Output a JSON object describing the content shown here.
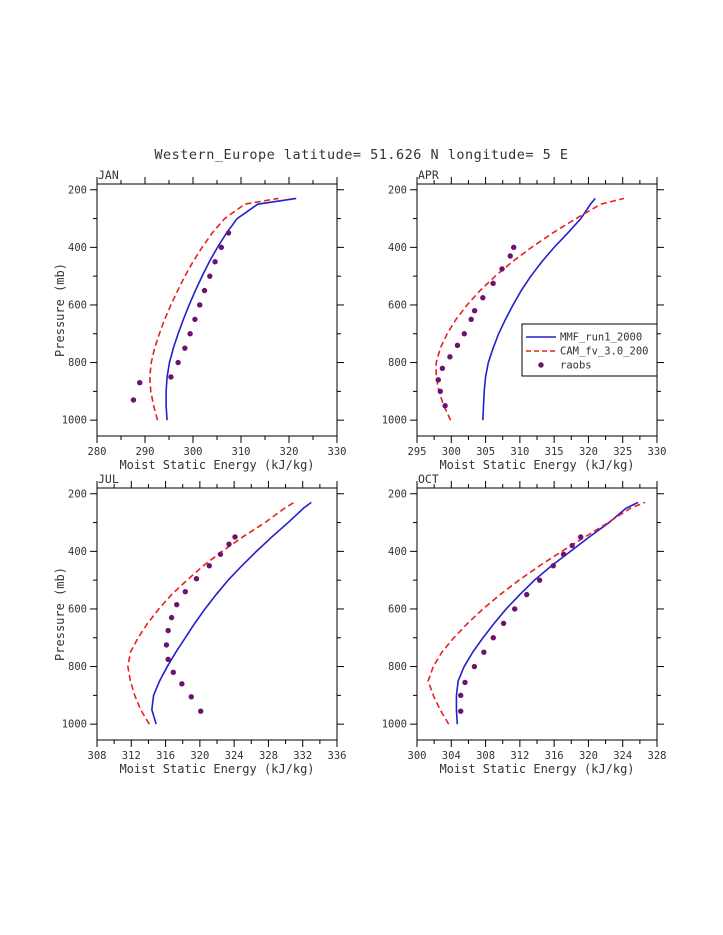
{
  "title": "Western_Europe  latitude= 51.626 N longitude= 5 E",
  "xlabel": "Moist Static Energy (kJ/kg)",
  "ylabel": "Pressure (mb)",
  "colors": {
    "mmf": "#2020cc",
    "cam": "#e82020",
    "raobs": "#6e1272",
    "text": "#333333",
    "axis": "#000000"
  },
  "legend": {
    "entries": [
      {
        "key": "mmf",
        "label": "MMF_run1_2000",
        "style": "solid"
      },
      {
        "key": "cam",
        "label": "CAM_fv_3.0_200",
        "style": "dashed"
      },
      {
        "key": "raobs",
        "label": "raobs",
        "style": "dots"
      }
    ]
  },
  "axes": {
    "ylim": [
      180,
      1055
    ],
    "yticks": [
      200,
      400,
      600,
      800,
      1000
    ],
    "y_minor_step": 100
  },
  "chart_data": [
    {
      "type": "line",
      "label": "JAN",
      "xlim": [
        280,
        330
      ],
      "xticks": [
        280,
        290,
        300,
        310,
        320,
        330
      ],
      "x_minor_step": 5,
      "show_ylabel": true,
      "show_legend": false,
      "series": {
        "mmf": {
          "p": [
            1000,
            950,
            900,
            850,
            800,
            750,
            700,
            650,
            600,
            550,
            500,
            450,
            400,
            350,
            300,
            250,
            230
          ],
          "x": [
            294.6,
            294.4,
            294.4,
            294.6,
            295.1,
            295.9,
            296.9,
            298.0,
            299.2,
            300.5,
            301.9,
            303.4,
            305.1,
            307.0,
            309.2,
            313.5,
            321.5
          ]
        },
        "cam": {
          "p": [
            1000,
            950,
            900,
            850,
            800,
            750,
            700,
            650,
            600,
            550,
            500,
            450,
            400,
            350,
            300,
            250,
            230
          ],
          "x": [
            292.6,
            291.8,
            291.2,
            291.0,
            291.3,
            292.0,
            293.0,
            294.1,
            295.4,
            296.8,
            298.3,
            300.0,
            301.9,
            304.0,
            306.6,
            310.8,
            317.8
          ]
        },
        "raobs": {
          "p": [
            930,
            870,
            850,
            800,
            750,
            700,
            650,
            600,
            550,
            500,
            450,
            400,
            350
          ],
          "x": [
            287.6,
            288.9,
            295.4,
            296.9,
            298.3,
            299.4,
            300.4,
            301.4,
            302.4,
            303.5,
            304.6,
            305.9,
            307.4
          ]
        }
      }
    },
    {
      "type": "line",
      "label": "APR",
      "xlim": [
        295,
        330
      ],
      "xticks": [
        295,
        300,
        305,
        310,
        315,
        320,
        325,
        330
      ],
      "x_minor_step": 2.5,
      "show_ylabel": false,
      "show_legend": true,
      "series": {
        "mmf": {
          "p": [
            1000,
            950,
            900,
            850,
            800,
            750,
            700,
            650,
            600,
            550,
            500,
            450,
            400,
            350,
            300,
            250,
            230
          ],
          "x": [
            304.6,
            304.7,
            304.8,
            305.0,
            305.4,
            306.1,
            306.9,
            307.9,
            309.0,
            310.2,
            311.6,
            313.2,
            315.0,
            317.0,
            318.9,
            320.3,
            321.0
          ]
        },
        "cam": {
          "p": [
            1000,
            950,
            900,
            850,
            800,
            750,
            700,
            650,
            600,
            550,
            500,
            450,
            400,
            350,
            300,
            250,
            230
          ],
          "x": [
            299.9,
            298.9,
            298.2,
            297.8,
            297.8,
            298.4,
            299.4,
            300.7,
            302.3,
            304.2,
            306.4,
            308.9,
            311.7,
            314.8,
            318.2,
            321.8,
            325.2
          ]
        },
        "raobs": {
          "p": [
            950,
            900,
            860,
            820,
            780,
            740,
            700,
            650,
            620,
            575,
            525,
            475,
            430,
            400
          ],
          "x": [
            299.1,
            298.4,
            298.1,
            298.7,
            299.8,
            300.9,
            301.9,
            302.9,
            303.4,
            304.6,
            306.1,
            307.4,
            308.6,
            309.1
          ]
        }
      }
    },
    {
      "type": "line",
      "label": "JUL",
      "xlim": [
        308,
        336
      ],
      "xticks": [
        308,
        312,
        316,
        320,
        324,
        328,
        332,
        336
      ],
      "x_minor_step": 2,
      "show_ylabel": true,
      "show_legend": false,
      "series": {
        "mmf": {
          "p": [
            1000,
            950,
            900,
            850,
            800,
            750,
            700,
            650,
            600,
            550,
            500,
            450,
            400,
            350,
            300,
            250,
            230
          ],
          "x": [
            314.9,
            314.4,
            314.6,
            315.3,
            316.2,
            317.2,
            318.3,
            319.4,
            320.6,
            321.9,
            323.3,
            324.9,
            326.6,
            328.4,
            330.3,
            332.1,
            333.0
          ]
        },
        "cam": {
          "p": [
            1000,
            950,
            900,
            850,
            800,
            750,
            700,
            650,
            600,
            550,
            500,
            450,
            400,
            350,
            300,
            250,
            230
          ],
          "x": [
            314.1,
            313.1,
            312.4,
            311.9,
            311.6,
            311.9,
            312.8,
            313.9,
            315.2,
            316.7,
            318.5,
            320.4,
            322.6,
            325.0,
            327.6,
            329.9,
            331.0
          ]
        },
        "raobs": {
          "p": [
            955,
            905,
            860,
            820,
            775,
            725,
            675,
            630,
            585,
            540,
            495,
            450,
            410,
            375,
            350
          ],
          "x": [
            320.1,
            319.0,
            317.9,
            316.9,
            316.3,
            316.1,
            316.3,
            316.7,
            317.3,
            318.3,
            319.6,
            321.1,
            322.4,
            323.4,
            324.1
          ]
        }
      }
    },
    {
      "type": "line",
      "label": "OCT",
      "xlim": [
        300,
        328
      ],
      "xticks": [
        300,
        304,
        308,
        312,
        316,
        320,
        324,
        328
      ],
      "x_minor_step": 2,
      "show_ylabel": false,
      "show_legend": false,
      "series": {
        "mmf": {
          "p": [
            1000,
            950,
            900,
            850,
            800,
            750,
            700,
            650,
            600,
            550,
            500,
            450,
            400,
            350,
            300,
            250,
            230
          ],
          "x": [
            304.7,
            304.6,
            304.6,
            304.8,
            305.5,
            306.5,
            307.7,
            309.0,
            310.4,
            312.0,
            313.7,
            315.7,
            317.9,
            320.1,
            322.4,
            324.4,
            325.8
          ]
        },
        "cam": {
          "p": [
            1000,
            950,
            900,
            850,
            800,
            750,
            700,
            650,
            600,
            550,
            500,
            450,
            400,
            350,
            300,
            250,
            230
          ],
          "x": [
            303.7,
            302.7,
            301.9,
            301.3,
            301.9,
            302.9,
            304.3,
            305.9,
            307.7,
            309.7,
            311.9,
            314.3,
            316.9,
            319.6,
            322.3,
            324.9,
            326.6
          ]
        },
        "raobs": {
          "p": [
            955,
            900,
            855,
            800,
            750,
            700,
            650,
            600,
            550,
            500,
            450,
            410,
            380,
            350
          ],
          "x": [
            305.1,
            305.1,
            305.6,
            306.7,
            307.8,
            308.9,
            310.1,
            311.4,
            312.8,
            314.3,
            315.9,
            317.1,
            318.1,
            319.1
          ]
        }
      }
    }
  ]
}
